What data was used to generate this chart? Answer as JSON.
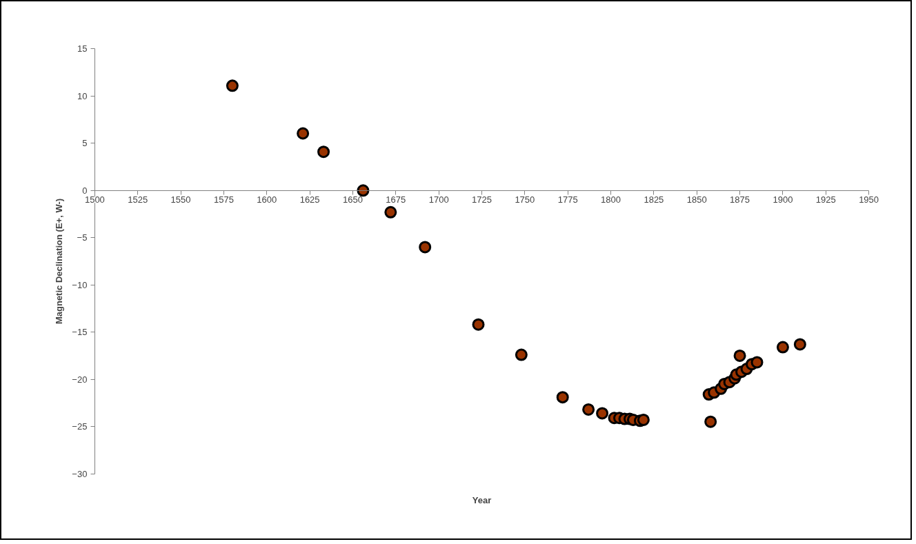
{
  "chart_data": {
    "type": "scatter",
    "xlabel": "Year",
    "ylabel": "Magnetic Declination (E+, W-)",
    "x": [
      1580,
      1621,
      1633,
      1656,
      1672,
      1692,
      1723,
      1748,
      1772,
      1787,
      1795,
      1802,
      1805,
      1808,
      1811,
      1813,
      1817,
      1819,
      1857,
      1858,
      1860,
      1864,
      1866,
      1869,
      1872,
      1873,
      1876,
      1879,
      1882,
      1885,
      1875,
      1900,
      1910
    ],
    "series": [
      {
        "color": "#993300",
        "values": [
          11.1,
          6.05,
          4.1,
          0,
          -2.3,
          -6.0,
          -14.2,
          -17.4,
          -21.9,
          -23.2,
          -23.6,
          -24.1,
          -24.1,
          -24.2,
          -24.2,
          -24.3,
          -24.4,
          -24.3,
          -21.6,
          -24.5,
          -21.4,
          -21.0,
          -20.5,
          -20.3,
          -19.9,
          -19.5,
          -19.2,
          -18.9,
          -18.4,
          -18.2,
          -17.5,
          -16.6,
          -16.3
        ]
      }
    ],
    "xlim": [
      1500,
      1950
    ],
    "xticks": [
      1500,
      1525,
      1550,
      1575,
      1600,
      1625,
      1650,
      1675,
      1700,
      1725,
      1750,
      1775,
      1800,
      1825,
      1850,
      1875,
      1900,
      1925,
      1950
    ],
    "ylim": [
      -30,
      15
    ],
    "yticks": [
      -30,
      -25,
      -20,
      -15,
      -10,
      -5,
      0,
      5,
      10,
      15
    ],
    "grid": false,
    "marker": "circle"
  }
}
